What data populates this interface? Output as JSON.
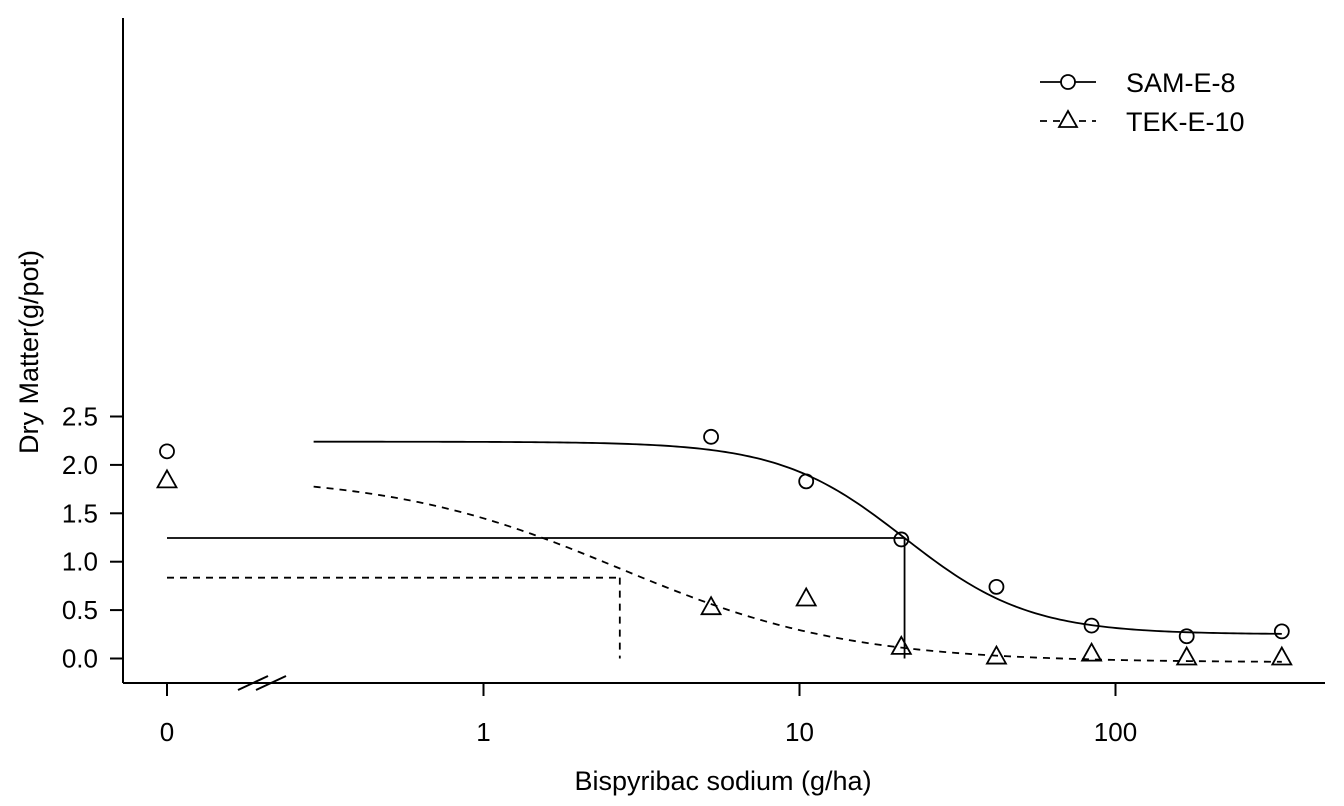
{
  "chart_data": {
    "type": "scatter",
    "title": "",
    "xlabel": "Bispyribac sodium (g/ha)",
    "ylabel": "Dry Matter(g/pot)",
    "x_scale": "log",
    "x_axis_break": true,
    "x_tick_labels": [
      "0",
      "1",
      "10",
      "100"
    ],
    "y_tick_labels": [
      "0.0",
      "0.5",
      "1.0",
      "1.5",
      "2.0",
      "2.5"
    ],
    "ylim": [
      -0.1,
      2.65
    ],
    "legend_position": "top-right",
    "series": [
      {
        "name": "SAM-E-8",
        "marker": "circle",
        "line_style": "solid",
        "points": [
          {
            "x": 0,
            "y": 2.14
          },
          {
            "x": 5.25,
            "y": 2.29
          },
          {
            "x": 10.5,
            "y": 1.83
          },
          {
            "x": 21,
            "y": 1.23
          },
          {
            "x": 42,
            "y": 0.74
          },
          {
            "x": 84,
            "y": 0.34
          },
          {
            "x": 168,
            "y": 0.23
          },
          {
            "x": 336,
            "y": 0.28
          }
        ],
        "fit": {
          "model": "log-logistic",
          "lower": 0.25,
          "upper": 2.24,
          "ed50": 21.5,
          "slope": 2.2
        },
        "ed50_guide": {
          "x": 21.5,
          "y": 1.245
        }
      },
      {
        "name": "TEK-E-10",
        "marker": "triangle",
        "line_style": "dashed",
        "points": [
          {
            "x": 0,
            "y": 1.84
          },
          {
            "x": 5.25,
            "y": 0.53
          },
          {
            "x": 10.5,
            "y": 0.62
          },
          {
            "x": 21,
            "y": 0.12
          },
          {
            "x": 42,
            "y": 0.02
          },
          {
            "x": 84,
            "y": 0.05
          },
          {
            "x": 168,
            "y": 0.01
          },
          {
            "x": 336,
            "y": 0.01
          }
        ],
        "fit": {
          "model": "log-logistic",
          "lower": -0.04,
          "upper": 1.9,
          "ed50": 2.7,
          "slope": 1.2
        },
        "ed50_guide": {
          "x": 2.7,
          "y": 0.835
        }
      }
    ],
    "fit_x_range": [
      0.29,
      336
    ]
  }
}
